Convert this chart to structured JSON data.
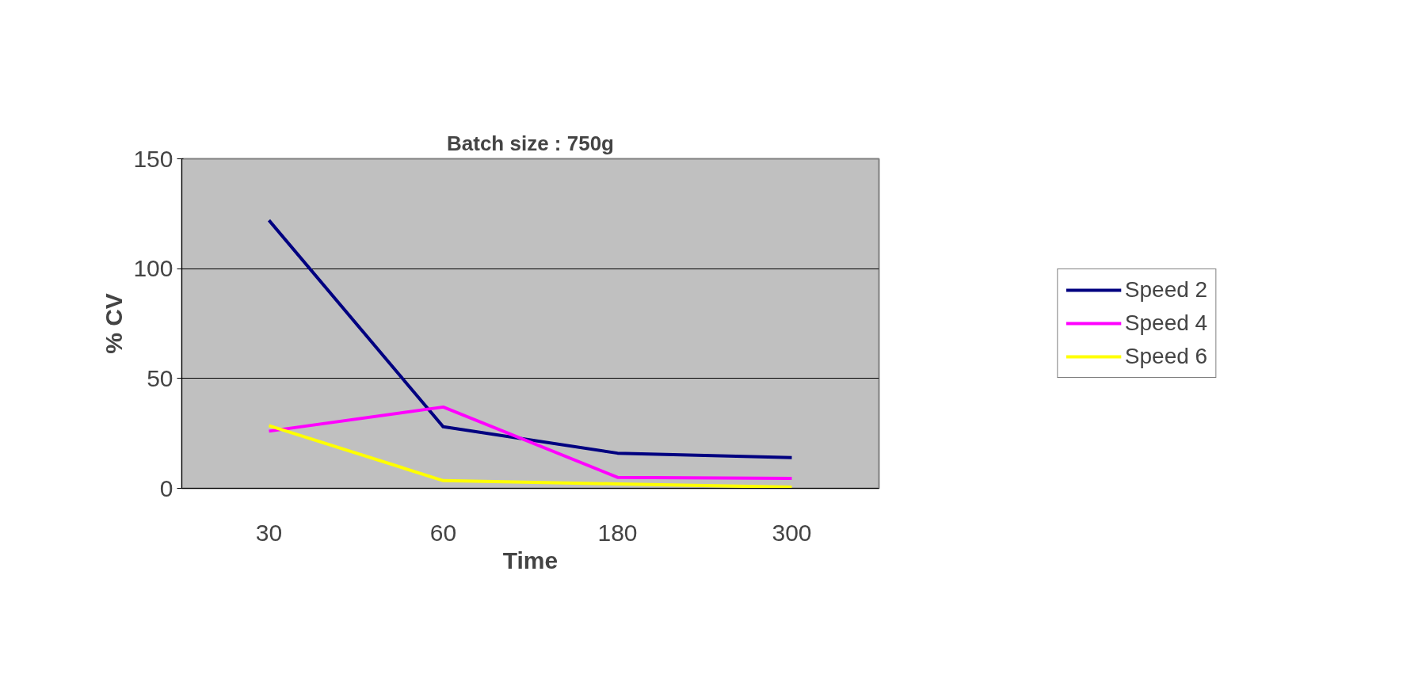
{
  "chart_data": {
    "type": "line",
    "title": "Batch size : 750g",
    "xlabel": "Time",
    "ylabel": "% CV",
    "categories": [
      "30",
      "60",
      "180",
      "300"
    ],
    "series": [
      {
        "name": "Speed 2",
        "color": "#000080",
        "values": [
          122,
          28,
          16,
          14
        ]
      },
      {
        "name": "Speed 4",
        "color": "#ff00ff",
        "values": [
          26,
          37,
          5,
          4.5
        ]
      },
      {
        "name": "Speed 6",
        "color": "#ffff00",
        "values": [
          28.5,
          3.5,
          2,
          0.5
        ]
      }
    ],
    "ylim": [
      0,
      150
    ],
    "yticks": [
      0,
      50,
      100,
      150
    ],
    "grid": "y",
    "legend": "right",
    "marker": "none",
    "line_style": "solid"
  }
}
